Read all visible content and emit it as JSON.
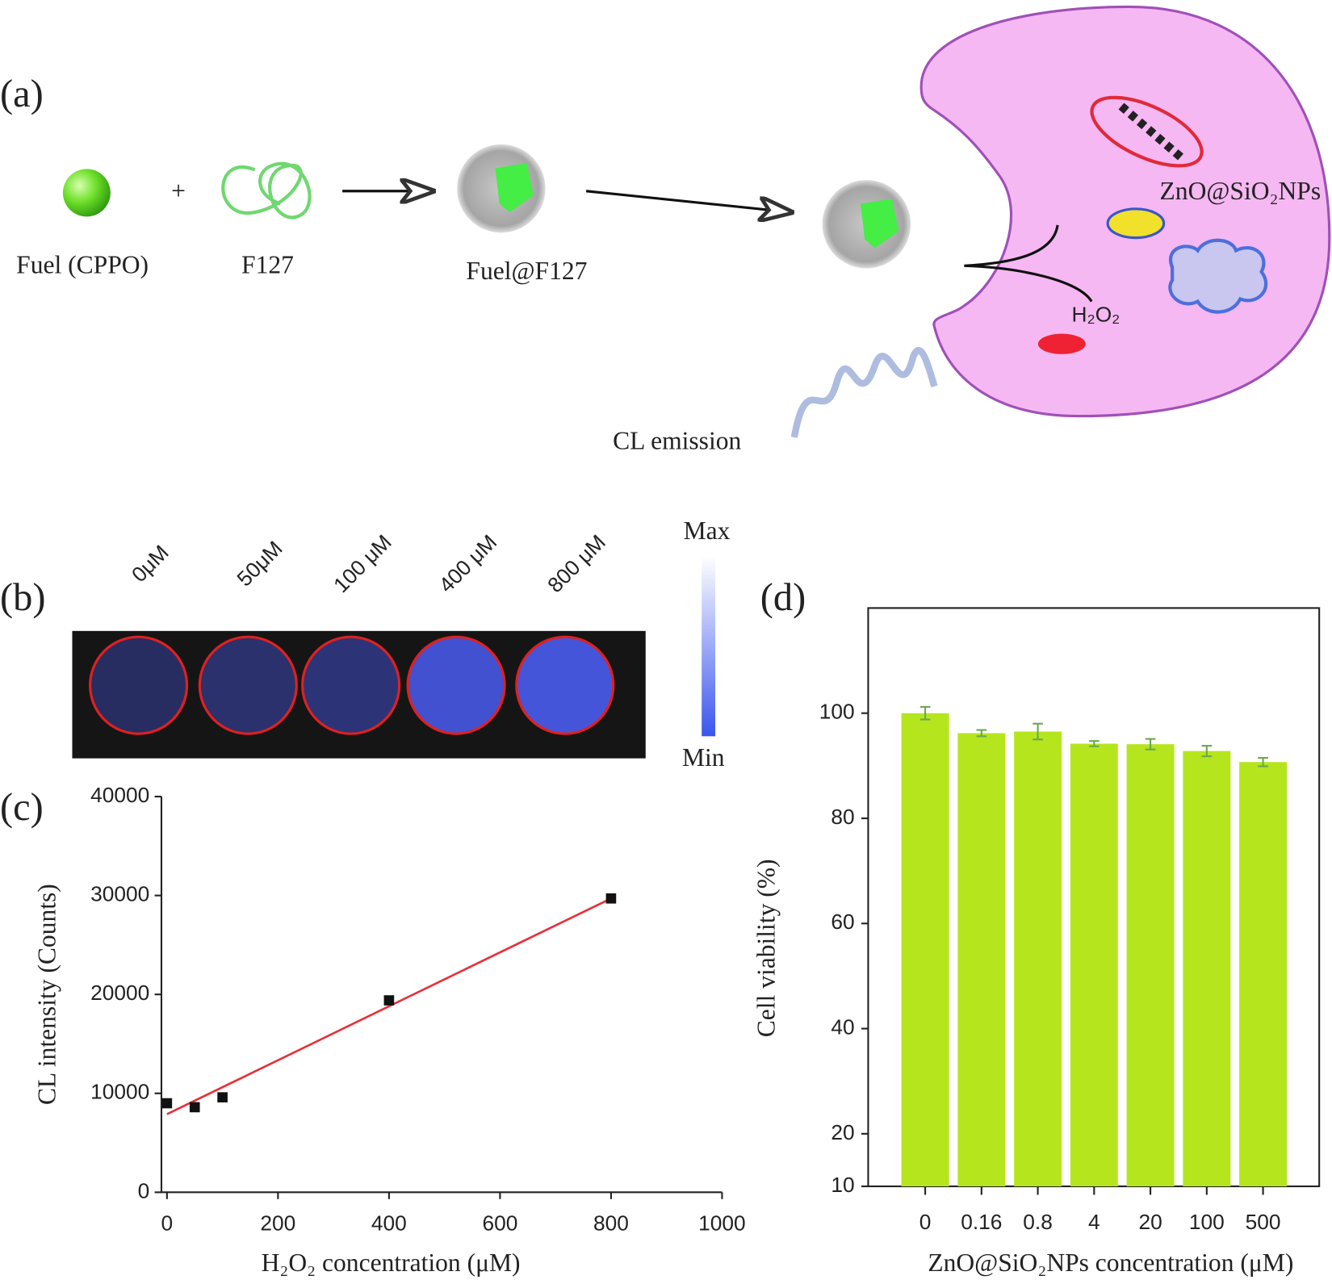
{
  "panel_a": {
    "label": "(a)",
    "fuel": "Fuel (CPPO)",
    "plus": "+",
    "polymer": "F127",
    "micelle": "Fuel@F127",
    "nanoparticles": "ZnO@SiO₂NPs",
    "oxidant": "H₂O₂",
    "emission": "CL emission"
  },
  "panel_b": {
    "label": "(b)",
    "wells": [
      "0μM",
      "50μM",
      "100 μM",
      "400 μM",
      "800 μM"
    ],
    "scale_max": "Max",
    "scale_min": "Min"
  },
  "chart_data": [
    {
      "type": "scatter",
      "panel_label": "(c)",
      "x_label": "H₂O₂ concentration (μM)",
      "y_label": "CL  intensity (Counts)",
      "x": [
        0,
        50,
        100,
        400,
        800
      ],
      "values": [
        9000,
        8600,
        9600,
        19400,
        29700
      ],
      "color": "#111111",
      "fit": {
        "x": [
          0,
          800
        ],
        "values": [
          7900,
          29700
        ],
        "color": "#e8303a"
      },
      "xlim": [
        -10,
        1000
      ],
      "ylim": [
        0,
        40000
      ],
      "xticks": [
        0,
        200,
        400,
        600,
        800,
        1000
      ],
      "yticks": [
        0,
        10000,
        20000,
        30000,
        40000
      ]
    },
    {
      "type": "bar",
      "panel_label": "(d)",
      "x_label": "ZnO@SiO₂NPs  concentration (μM)",
      "y_label": "Cell viability (%)",
      "categories": [
        "0",
        "0.16",
        "0.8",
        "4",
        "20",
        "100",
        "500"
      ],
      "values": [
        100,
        96.2,
        96.5,
        94.2,
        94.1,
        92.8,
        90.7
      ],
      "errors": [
        1.2,
        0.6,
        1.5,
        0.5,
        1.0,
        1.0,
        0.8
      ],
      "color": "#b5e61d",
      "error_color": "#6aa84f",
      "ylim": [
        10,
        120
      ],
      "yticks": [
        10,
        20,
        40,
        60,
        80,
        100
      ]
    }
  ]
}
